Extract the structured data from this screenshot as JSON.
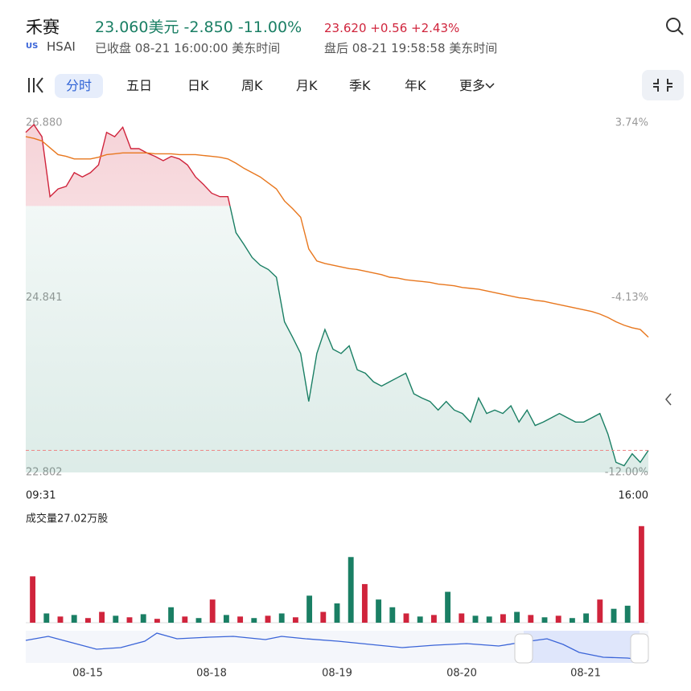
{
  "header": {
    "name": "禾赛",
    "price": "23.060美元",
    "change": "-2.850",
    "change_pct": "-11.00%",
    "market": "US",
    "symbol": "HSAI",
    "status": "已收盘 08-21 16:00:00 美东时间",
    "after_price": "23.620",
    "after_change": "+0.56",
    "after_pct": "+2.43%",
    "after_status": "盘后 08-21 19:58:58 美东时间"
  },
  "tabs": {
    "items": [
      "分时",
      "五日",
      "日K",
      "周K",
      "月K",
      "季K",
      "年K",
      "更多"
    ],
    "active": 0
  },
  "chart_data": {
    "type": "line",
    "x_start_label": "09:31",
    "x_end_label": "16:00",
    "ylim": [
      22.802,
      26.88
    ],
    "yticks": [
      {
        "value": 26.88,
        "label": "26.880"
      },
      24.841,
      22.802
    ],
    "y2lim": [
      -12,
      3.74
    ],
    "y2ticks": [
      {
        "value": 3.74,
        "label": "3.74%"
      },
      {
        "value": -4.13,
        "label": "-4.13%"
      },
      {
        "value": -12,
        "label": "-12.00%"
      }
    ],
    "reference_line": 23.06,
    "up_color": "#d0243c",
    "down_color": "#1a7f64",
    "series": [
      {
        "color": "#d0243c",
        "values": [
          26.77,
          26.86,
          26.72,
          26.02,
          26.11,
          26.14,
          26.3,
          26.25,
          26.3,
          26.39,
          26.77,
          26.72,
          26.83,
          26.58,
          26.58,
          26.53,
          26.49,
          26.44,
          26.49,
          26.46,
          26.39,
          26.25,
          26.16,
          26.06,
          26.02,
          26.02,
          25.6,
          25.46,
          25.31,
          25.22,
          25.17,
          25.08,
          24.56,
          24.38,
          24.19,
          23.63,
          24.19,
          24.47,
          24.24,
          24.19,
          24.28,
          24.0,
          23.96,
          23.86,
          23.81,
          23.86,
          23.91,
          23.96,
          23.72,
          23.67,
          23.63,
          23.53,
          23.63,
          23.53,
          23.49,
          23.39,
          23.67,
          23.49,
          23.53,
          23.49,
          23.58,
          23.39,
          23.53,
          23.35,
          23.39,
          23.44,
          23.49,
          23.44,
          23.39,
          23.39,
          23.44,
          23.49,
          23.25,
          22.92,
          22.88,
          23.02,
          22.92,
          23.06
        ]
      },
      {
        "color": "#e8771e",
        "values": [
          26.72,
          26.7,
          26.67,
          26.59,
          26.51,
          26.49,
          26.46,
          26.46,
          26.46,
          26.48,
          26.51,
          26.52,
          26.53,
          26.53,
          26.53,
          26.53,
          26.52,
          26.52,
          26.52,
          26.51,
          26.51,
          26.51,
          26.5,
          26.49,
          26.48,
          26.46,
          26.41,
          26.35,
          26.3,
          26.25,
          26.18,
          26.11,
          25.97,
          25.88,
          25.78,
          25.41,
          25.27,
          25.24,
          25.22,
          25.2,
          25.18,
          25.17,
          25.15,
          25.13,
          25.11,
          25.08,
          25.07,
          25.05,
          25.04,
          25.03,
          25.02,
          25.0,
          24.99,
          24.98,
          24.96,
          24.95,
          24.94,
          24.92,
          24.9,
          24.88,
          24.86,
          24.84,
          24.83,
          24.81,
          24.8,
          24.78,
          24.76,
          24.74,
          24.72,
          24.7,
          24.68,
          24.65,
          24.61,
          24.56,
          24.52,
          24.49,
          24.47,
          24.38
        ]
      }
    ],
    "volume": {
      "label": "成交量27.02万股",
      "ylim": [
        0,
        130
      ],
      "values": [
        60,
        12,
        8,
        10,
        6,
        14,
        9,
        7,
        11,
        5,
        20,
        8,
        6,
        30,
        10,
        8,
        6,
        9,
        12,
        7,
        35,
        14,
        25,
        85,
        50,
        30,
        20,
        12,
        8,
        10,
        40,
        12,
        9,
        8,
        11,
        14,
        10,
        7,
        9,
        6,
        12,
        30,
        18,
        22,
        125
      ],
      "colors": [
        "#d0243c",
        "#1a7f64",
        "#d0243c",
        "#1a7f64",
        "#d0243c",
        "#d0243c",
        "#1a7f64",
        "#d0243c",
        "#1a7f64",
        "#d0243c",
        "#1a7f64",
        "#d0243c",
        "#1a7f64",
        "#d0243c",
        "#1a7f64",
        "#d0243c",
        "#1a7f64",
        "#d0243c",
        "#1a7f64",
        "#d0243c",
        "#1a7f64",
        "#d0243c",
        "#1a7f64",
        "#1a7f64",
        "#d0243c",
        "#1a7f64",
        "#1a7f64",
        "#d0243c",
        "#1a7f64",
        "#d0243c",
        "#1a7f64",
        "#d0243c",
        "#1a7f64",
        "#1a7f64",
        "#d0243c",
        "#1a7f64",
        "#d0243c",
        "#1a7f64",
        "#d0243c",
        "#1a7f64",
        "#1a7f64",
        "#d0243c",
        "#1a7f64",
        "#1a7f64",
        "#d0243c"
      ]
    }
  },
  "navigator": {
    "dates": [
      "08-15",
      "08-18",
      "08-19",
      "08-20",
      "08-21"
    ]
  }
}
